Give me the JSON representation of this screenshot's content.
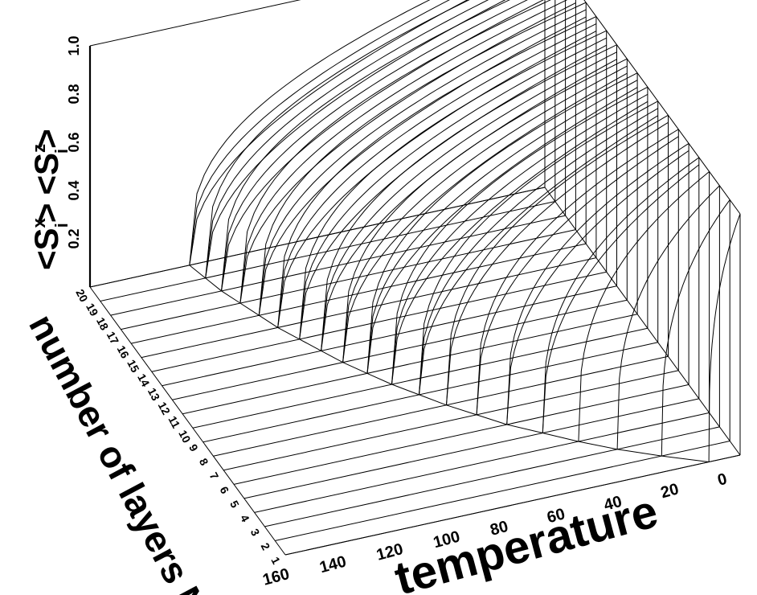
{
  "chart_data": {
    "type": "surface-3d-line",
    "xlabel": "temperature",
    "ylabel": "number of layers N",
    "zlabel_x": "<S",
    "zlabel_x_sup": "x",
    "zlabel_x_sub": "i",
    "zlabel_x_tail": ">",
    "zlabel_z": "<S",
    "zlabel_z_sup": "z",
    "zlabel_z_sub": "i",
    "zlabel_z_tail": ">",
    "x_ticks": [
      "160",
      "140",
      "120",
      "100",
      "80",
      "60",
      "40",
      "20",
      "0"
    ],
    "x_tick_values": [
      160,
      140,
      120,
      100,
      80,
      60,
      40,
      20,
      0
    ],
    "y_ticks": [
      "1",
      "2",
      "3",
      "4",
      "5",
      "6",
      "7",
      "8",
      "9",
      "10",
      "11",
      "12",
      "13",
      "14",
      "15",
      "16",
      "17",
      "18",
      "19",
      "20"
    ],
    "z_ticks": [
      "0.2",
      "0.4",
      "0.6",
      "0.8",
      "1.0"
    ],
    "z_tick_values": [
      0.2,
      0.4,
      0.6,
      0.8,
      1.0
    ],
    "xlim": [
      160,
      0
    ],
    "ylim": [
      1,
      20
    ],
    "zlim": [
      0,
      1
    ],
    "n_layers": [
      1,
      2,
      3,
      4,
      5,
      6,
      7,
      8,
      9,
      10,
      11,
      12,
      13,
      14,
      15,
      16,
      17,
      18,
      19,
      20
    ],
    "critical_temperature": [
      11,
      24,
      36,
      46,
      55,
      64,
      71,
      78,
      84,
      90,
      95,
      100,
      104,
      108,
      112,
      115,
      118,
      121,
      123,
      125
    ],
    "grid": true
  }
}
